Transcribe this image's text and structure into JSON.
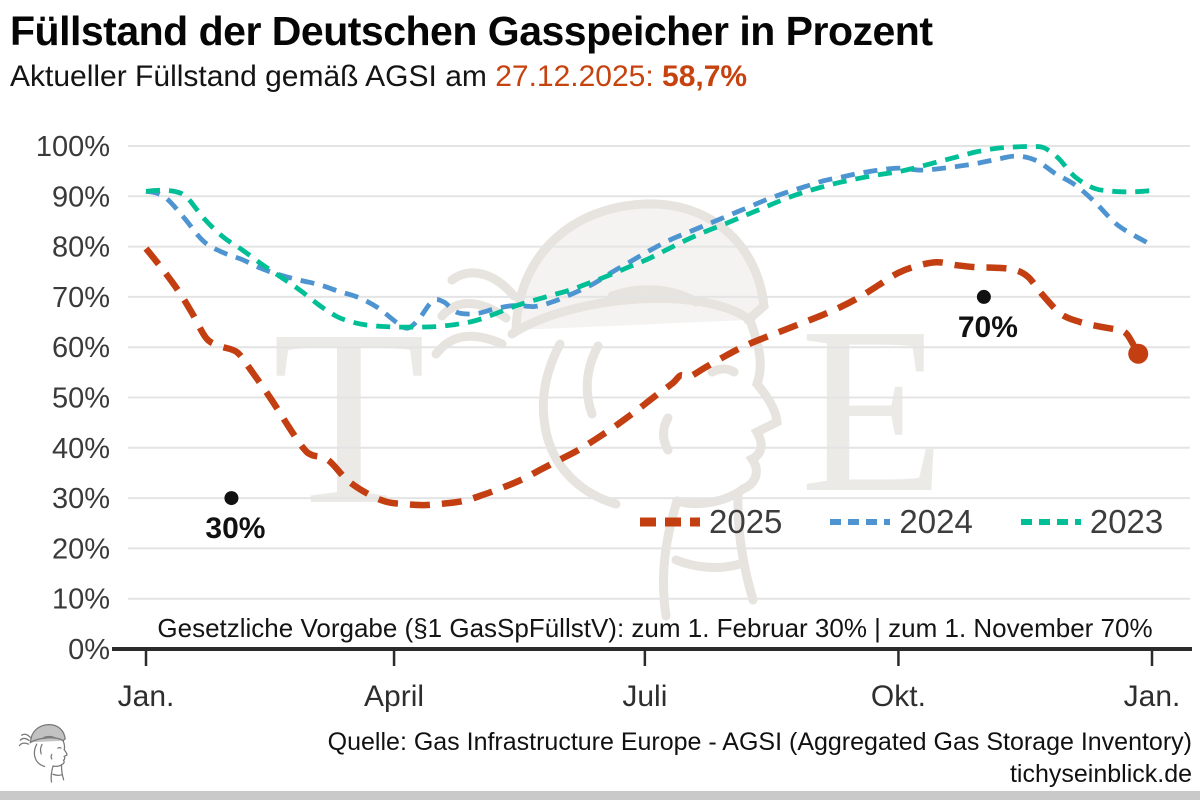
{
  "header": {
    "title": "Füllstand der Deutschen Gasspeicher in Prozent",
    "subtitle_prefix": "Aktueller Füllstand gemäß AGSI am ",
    "subtitle_highlight": "27.12.2025: ",
    "subtitle_value": "58,7%"
  },
  "chart_data": {
    "type": "line",
    "title": "Füllstand der Deutschen Gasspeicher in Prozent",
    "xlabel": "",
    "ylabel": "",
    "ylim": [
      0,
      100
    ],
    "grid": "horizontal",
    "legend_position": "inside-right",
    "x_unit": "day_of_year",
    "yticks": [
      {
        "value": 100,
        "label": "100%"
      },
      {
        "value": 90,
        "label": "90%"
      },
      {
        "value": 80,
        "label": "80%"
      },
      {
        "value": 70,
        "label": "70%"
      },
      {
        "value": 60,
        "label": "60%"
      },
      {
        "value": 50,
        "label": "50%"
      },
      {
        "value": 40,
        "label": "40%"
      },
      {
        "value": 30,
        "label": "30%"
      },
      {
        "value": 20,
        "label": "20%"
      },
      {
        "value": 10,
        "label": "10%"
      },
      {
        "value": 0,
        "label": "0%"
      }
    ],
    "xticks": [
      {
        "label": "Jan.",
        "day": 0
      },
      {
        "label": "April",
        "day": 90
      },
      {
        "label": "Juli",
        "day": 181
      },
      {
        "label": "Okt.",
        "day": 273
      },
      {
        "label": "Jan.",
        "day": 365
      }
    ],
    "series": [
      {
        "name": "2025",
        "color": "#c33f12",
        "width": 6.5,
        "dash": "20 12",
        "swatch_dash": "16 9",
        "swatch_width": 9,
        "points": [
          [
            0,
            79.6
          ],
          [
            6,
            75.5
          ],
          [
            12,
            71
          ],
          [
            17,
            66.5
          ],
          [
            22,
            61.7
          ],
          [
            27,
            60.2
          ],
          [
            33,
            59
          ],
          [
            38,
            55.5
          ],
          [
            45,
            50
          ],
          [
            52,
            44
          ],
          [
            57,
            40
          ],
          [
            60,
            38.6
          ],
          [
            66,
            37.6
          ],
          [
            73,
            33.6
          ],
          [
            80,
            31
          ],
          [
            87,
            29.3
          ],
          [
            94,
            28.8
          ],
          [
            101,
            28.6
          ],
          [
            108,
            28.9
          ],
          [
            115,
            29.4
          ],
          [
            122,
            30.6
          ],
          [
            129,
            32
          ],
          [
            136,
            33.6
          ],
          [
            143,
            35.6
          ],
          [
            150,
            37.6
          ],
          [
            157,
            39.6
          ],
          [
            164,
            42
          ],
          [
            171,
            44.6
          ],
          [
            178,
            47.4
          ],
          [
            185,
            50.4
          ],
          [
            191,
            52.8
          ],
          [
            194,
            54.4
          ],
          [
            197,
            54.1
          ],
          [
            203,
            56
          ],
          [
            210,
            58.2
          ],
          [
            217,
            60.2
          ],
          [
            224,
            61.8
          ],
          [
            231,
            63.3
          ],
          [
            238,
            64.8
          ],
          [
            245,
            66.3
          ],
          [
            252,
            68
          ],
          [
            259,
            70
          ],
          [
            266,
            72.4
          ],
          [
            273,
            74.8
          ],
          [
            280,
            76.2
          ],
          [
            287,
            76.9
          ],
          [
            294,
            76.3
          ],
          [
            301,
            75.9
          ],
          [
            308,
            75.8
          ],
          [
            315,
            75.4
          ],
          [
            320,
            74
          ],
          [
            325,
            70.6
          ],
          [
            332,
            66.6
          ],
          [
            339,
            65
          ],
          [
            346,
            64.1
          ],
          [
            353,
            63.4
          ],
          [
            356,
            62.5
          ],
          [
            360,
            58.7
          ]
        ]
      },
      {
        "name": "2024",
        "color": "#4d94d1",
        "width": 4.8,
        "dash": "14 9",
        "swatch_dash": "11 7",
        "swatch_width": 6,
        "points": [
          [
            0,
            91
          ],
          [
            4,
            90.6
          ],
          [
            8,
            89.3
          ],
          [
            14,
            85.6
          ],
          [
            21,
            81
          ],
          [
            28,
            78.8
          ],
          [
            35,
            77.4
          ],
          [
            42,
            75.6
          ],
          [
            49,
            74.3
          ],
          [
            56,
            73.3
          ],
          [
            63,
            72.4
          ],
          [
            70,
            71.1
          ],
          [
            77,
            69.9
          ],
          [
            84,
            67.9
          ],
          [
            91,
            64.9
          ],
          [
            95,
            63.8
          ],
          [
            99,
            65.6
          ],
          [
            104,
            69.2
          ],
          [
            108,
            69
          ],
          [
            113,
            66.9
          ],
          [
            120,
            66.7
          ],
          [
            127,
            67.7
          ],
          [
            134,
            68.3
          ],
          [
            141,
            68.1
          ],
          [
            148,
            69.1
          ],
          [
            155,
            70.7
          ],
          [
            162,
            72.5
          ],
          [
            169,
            74.9
          ],
          [
            176,
            77.1
          ],
          [
            183,
            79.3
          ],
          [
            190,
            81.3
          ],
          [
            197,
            82.9
          ],
          [
            204,
            84.5
          ],
          [
            211,
            86.1
          ],
          [
            218,
            87.7
          ],
          [
            225,
            89.3
          ],
          [
            232,
            90.7
          ],
          [
            239,
            91.9
          ],
          [
            246,
            93.1
          ],
          [
            253,
            93.9
          ],
          [
            260,
            94.7
          ],
          [
            267,
            95.3
          ],
          [
            274,
            95.6
          ],
          [
            281,
            95.2
          ],
          [
            288,
            95.5
          ],
          [
            295,
            96
          ],
          [
            302,
            96.6
          ],
          [
            309,
            97.4
          ],
          [
            316,
            98
          ],
          [
            323,
            97.1
          ],
          [
            330,
            94.5
          ],
          [
            337,
            92.3
          ],
          [
            344,
            89
          ],
          [
            351,
            85
          ],
          [
            356,
            83
          ],
          [
            364,
            80.6
          ]
        ]
      },
      {
        "name": "2023",
        "color": "#00bf96",
        "width": 4.8,
        "dash": "14 9",
        "swatch_dash": "11 7",
        "swatch_width": 6,
        "points": [
          [
            0,
            91
          ],
          [
            5,
            91.2
          ],
          [
            11,
            90.9
          ],
          [
            15,
            89.7
          ],
          [
            21,
            85.6
          ],
          [
            28,
            81.9
          ],
          [
            35,
            79.3
          ],
          [
            42,
            76.5
          ],
          [
            49,
            73.9
          ],
          [
            56,
            71.3
          ],
          [
            63,
            68.3
          ],
          [
            70,
            65.9
          ],
          [
            77,
            64.7
          ],
          [
            84,
            64.2
          ],
          [
            91,
            64
          ],
          [
            98,
            64
          ],
          [
            105,
            64.1
          ],
          [
            112,
            64.5
          ],
          [
            119,
            65.2
          ],
          [
            126,
            66.5
          ],
          [
            133,
            68
          ],
          [
            140,
            69.2
          ],
          [
            147,
            70.3
          ],
          [
            154,
            71.4
          ],
          [
            161,
            72.8
          ],
          [
            168,
            74.3
          ],
          [
            175,
            75.9
          ],
          [
            182,
            77.5
          ],
          [
            189,
            79.4
          ],
          [
            196,
            81.3
          ],
          [
            203,
            83
          ],
          [
            210,
            84.5
          ],
          [
            217,
            86.1
          ],
          [
            224,
            87.7
          ],
          [
            231,
            89.3
          ],
          [
            238,
            90.7
          ],
          [
            245,
            91.8
          ],
          [
            252,
            92.8
          ],
          [
            259,
            93.6
          ],
          [
            266,
            94.3
          ],
          [
            273,
            94.9
          ],
          [
            280,
            95.8
          ],
          [
            287,
            96.8
          ],
          [
            294,
            97.8
          ],
          [
            301,
            98.8
          ],
          [
            308,
            99.5
          ],
          [
            315,
            99.8
          ],
          [
            322,
            99.9
          ],
          [
            326,
            99.6
          ],
          [
            331,
            97.6
          ],
          [
            337,
            93.9
          ],
          [
            344,
            91.6
          ],
          [
            351,
            91
          ],
          [
            358,
            90.9
          ],
          [
            364,
            91.1
          ]
        ]
      }
    ],
    "annotations": [
      {
        "label": "30%",
        "day": 31,
        "value": 30
      },
      {
        "label": "70%",
        "day": 304,
        "value": 70
      }
    ],
    "end_marker": {
      "series": "2025",
      "day": 360,
      "value": 58.7
    },
    "note": "Gesetzliche Vorgabe (§1 GasSpFüllstV): zum 1. Februar 30% | zum 1. November 70%"
  },
  "watermark": {
    "left_letter": "T",
    "right_letter": "E"
  },
  "footer": {
    "source": "Quelle: Gas Infrastructure Europe - AGSI (Aggregated Gas Storage Inventory)",
    "site": "tichyseinblick.de"
  },
  "colors": {
    "accent_red": "#c33f12",
    "subtitle_red": "#c6430f",
    "blue": "#4d94d1",
    "teal": "#00bf96",
    "grid": "#e4e4e4",
    "axis": "#2b2b2b",
    "annotation": "#111111",
    "watermark": "#eceae6",
    "bottom_bar": "#c9c9c9"
  }
}
